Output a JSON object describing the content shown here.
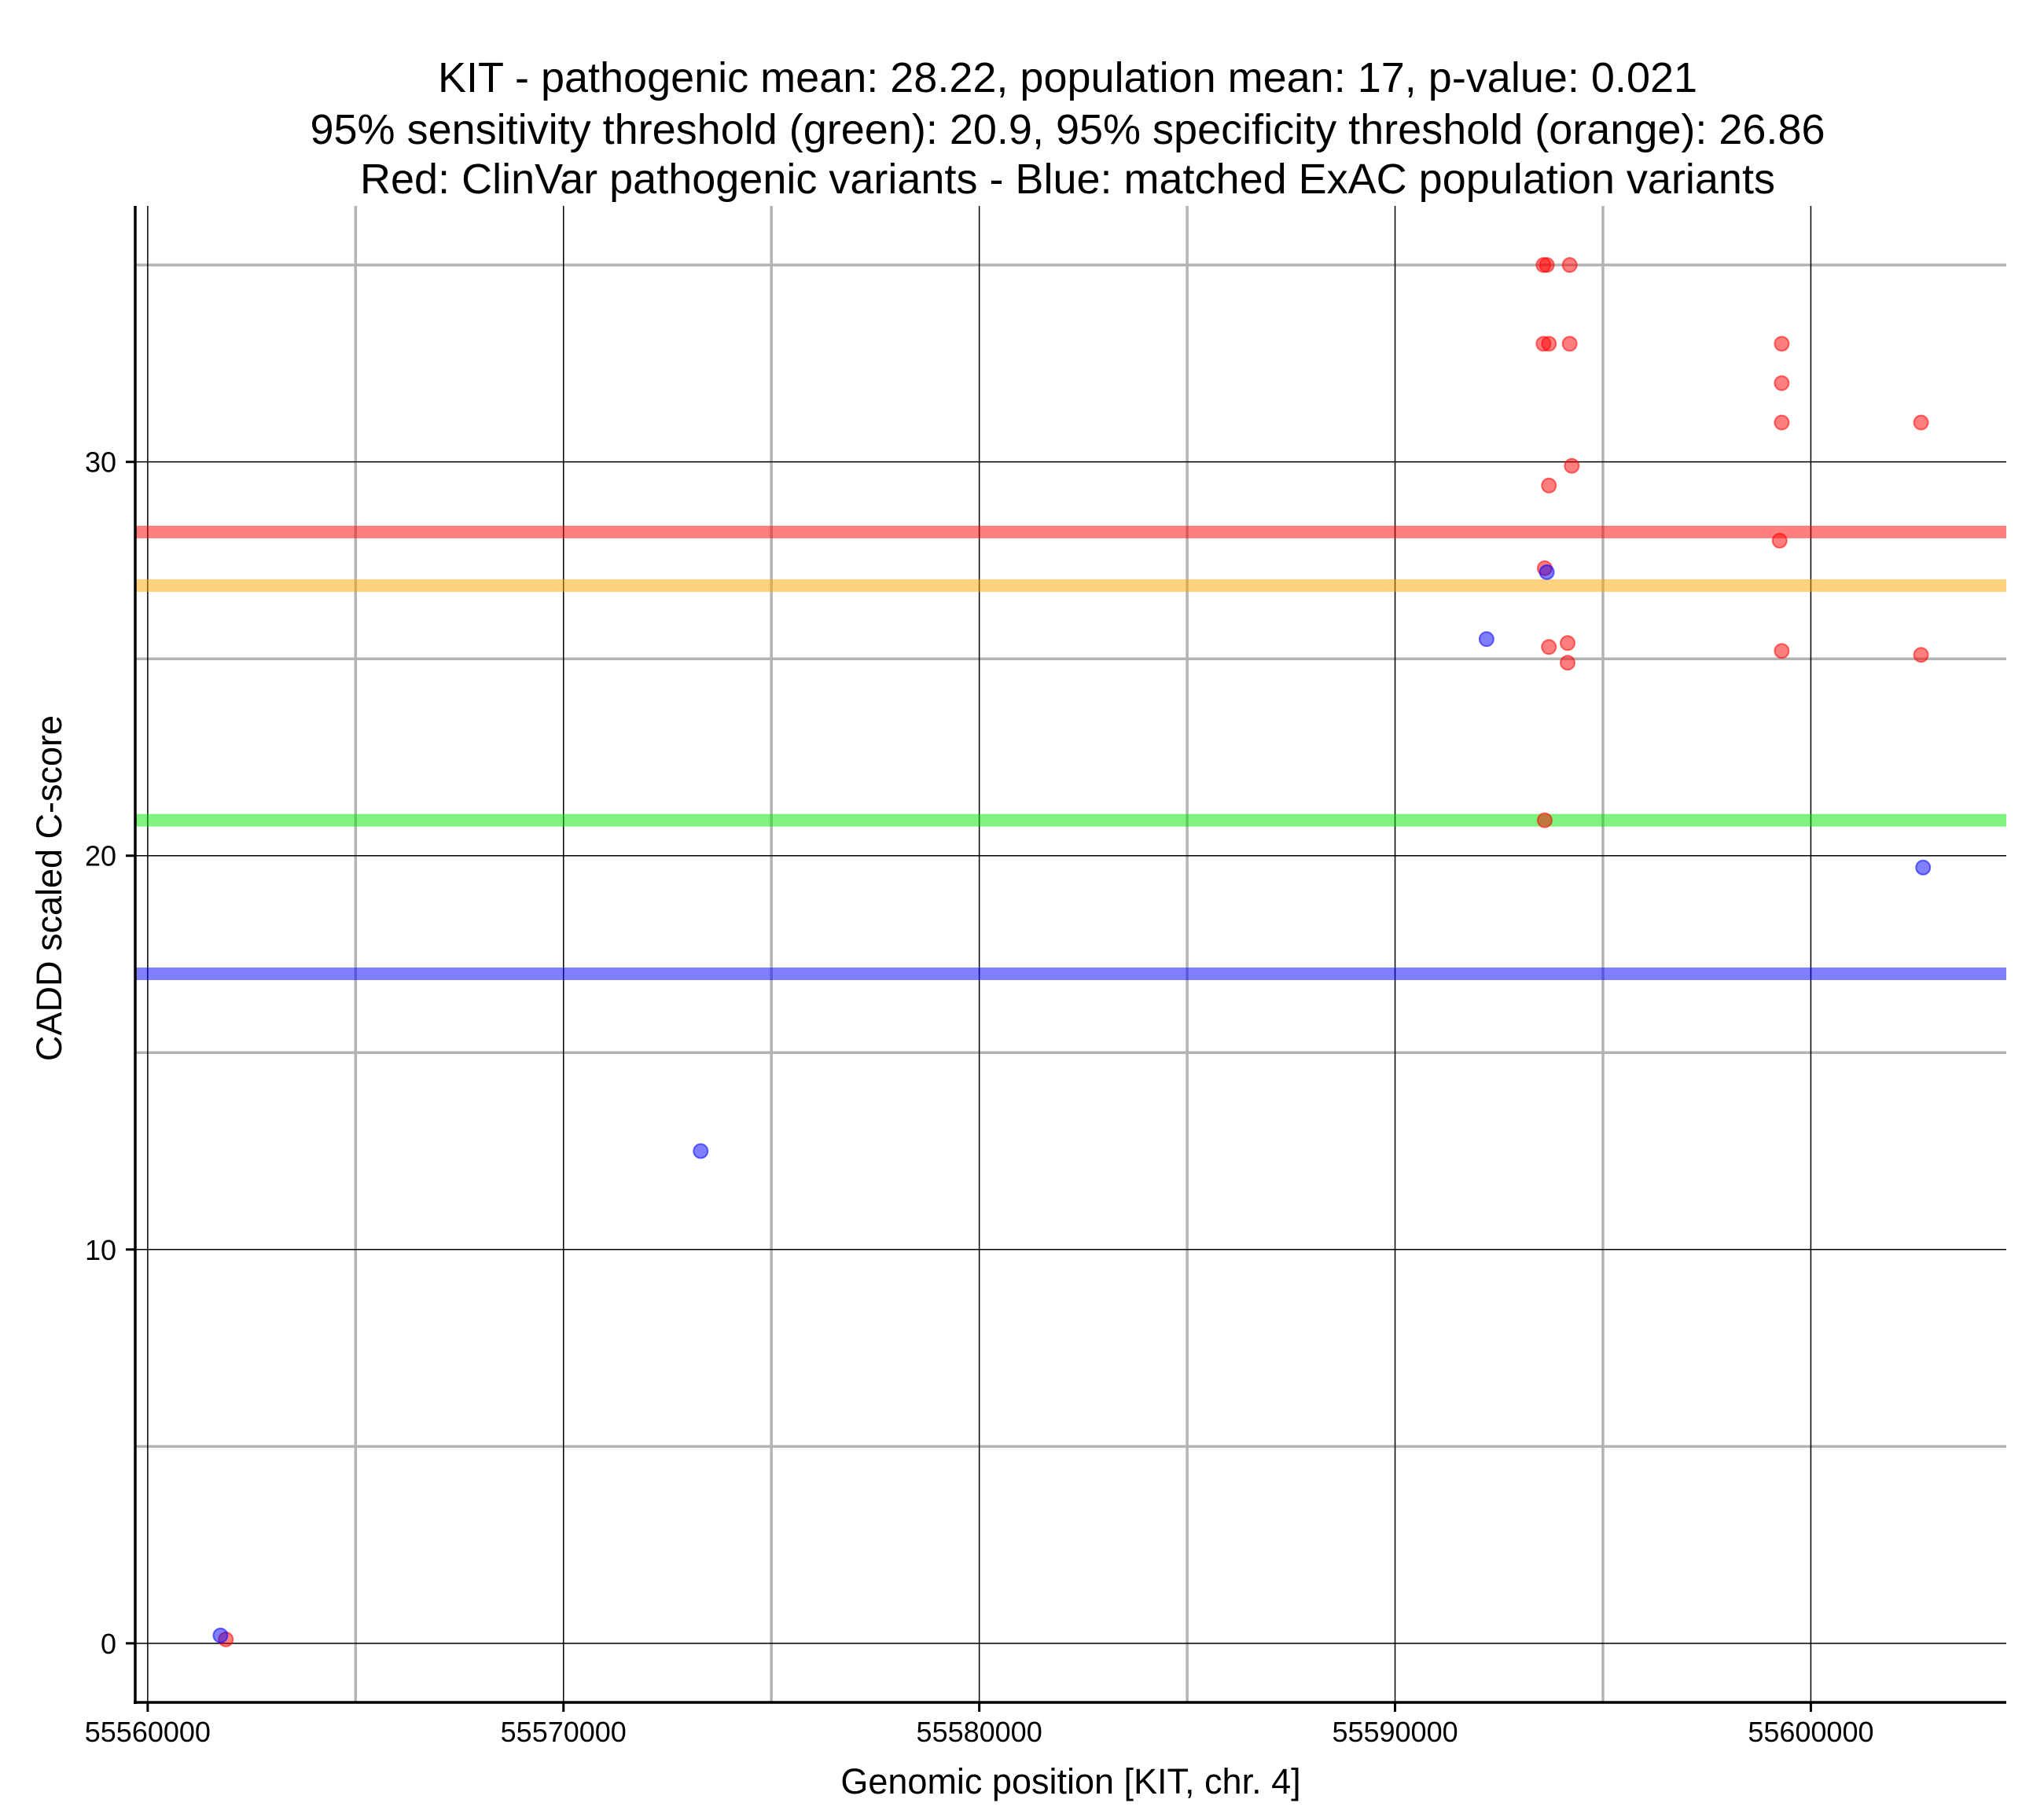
{
  "chart_data": {
    "type": "scatter",
    "title": [
      "KIT - pathogenic mean: 28.22, population mean: 17, p-value: 0.021",
      "95% sensitivity threshold (green): 20.9, 95% specificity threshold (orange): 26.86",
      "Red: ClinVar pathogenic variants - Blue: matched ExAC population variants"
    ],
    "xlabel": "Genomic position [KIT, chr. 4]",
    "ylabel": "CADD scaled C-score",
    "xlim": [
      55559700,
      55604700
    ],
    "ylim": [
      -1.5,
      36.5
    ],
    "x_ticks": [
      55560000,
      55570000,
      55580000,
      55590000,
      55600000
    ],
    "y_ticks": [
      0,
      10,
      20,
      30
    ],
    "x_minor_grid": [
      55565000,
      55575000,
      55585000,
      55595000
    ],
    "y_minor_grid": [
      5,
      15,
      25,
      35
    ],
    "grid": true,
    "colors": {
      "pathogenic": "#ff0000",
      "population": "#0000ff",
      "sensitivity": "#00e600",
      "specificity": "#ffa500"
    },
    "reference_lines": [
      {
        "y": 28.22,
        "color": "#ff0000"
      },
      {
        "y": 26.86,
        "color": "#ffa500"
      },
      {
        "y": 20.9,
        "color": "#00e600"
      },
      {
        "y": 17.0,
        "color": "#0000ff"
      }
    ],
    "series": [
      {
        "color": "#ff0000",
        "points": [
          {
            "x": 55561880,
            "y": 0.1
          },
          {
            "x": 55593570,
            "y": 35.0
          },
          {
            "x": 55593650,
            "y": 35.0
          },
          {
            "x": 55594200,
            "y": 35.0
          },
          {
            "x": 55593570,
            "y": 33.0
          },
          {
            "x": 55593700,
            "y": 33.0
          },
          {
            "x": 55594200,
            "y": 33.0
          },
          {
            "x": 55599300,
            "y": 33.0
          },
          {
            "x": 55599300,
            "y": 32.0
          },
          {
            "x": 55599300,
            "y": 31.0
          },
          {
            "x": 55602650,
            "y": 31.0
          },
          {
            "x": 55594250,
            "y": 29.9
          },
          {
            "x": 55593700,
            "y": 29.4
          },
          {
            "x": 55599250,
            "y": 28.0
          },
          {
            "x": 55593600,
            "y": 27.3
          },
          {
            "x": 55593700,
            "y": 25.3
          },
          {
            "x": 55594150,
            "y": 25.4
          },
          {
            "x": 55594150,
            "y": 24.9
          },
          {
            "x": 55599300,
            "y": 25.2
          },
          {
            "x": 55602650,
            "y": 25.1
          },
          {
            "x": 55593600,
            "y": 20.9
          }
        ]
      },
      {
        "color": "#0000ff",
        "points": [
          {
            "x": 55561750,
            "y": 0.2
          },
          {
            "x": 55573300,
            "y": 12.5
          },
          {
            "x": 55592200,
            "y": 25.5
          },
          {
            "x": 55593650,
            "y": 27.2
          },
          {
            "x": 55602700,
            "y": 19.7
          }
        ]
      }
    ]
  }
}
